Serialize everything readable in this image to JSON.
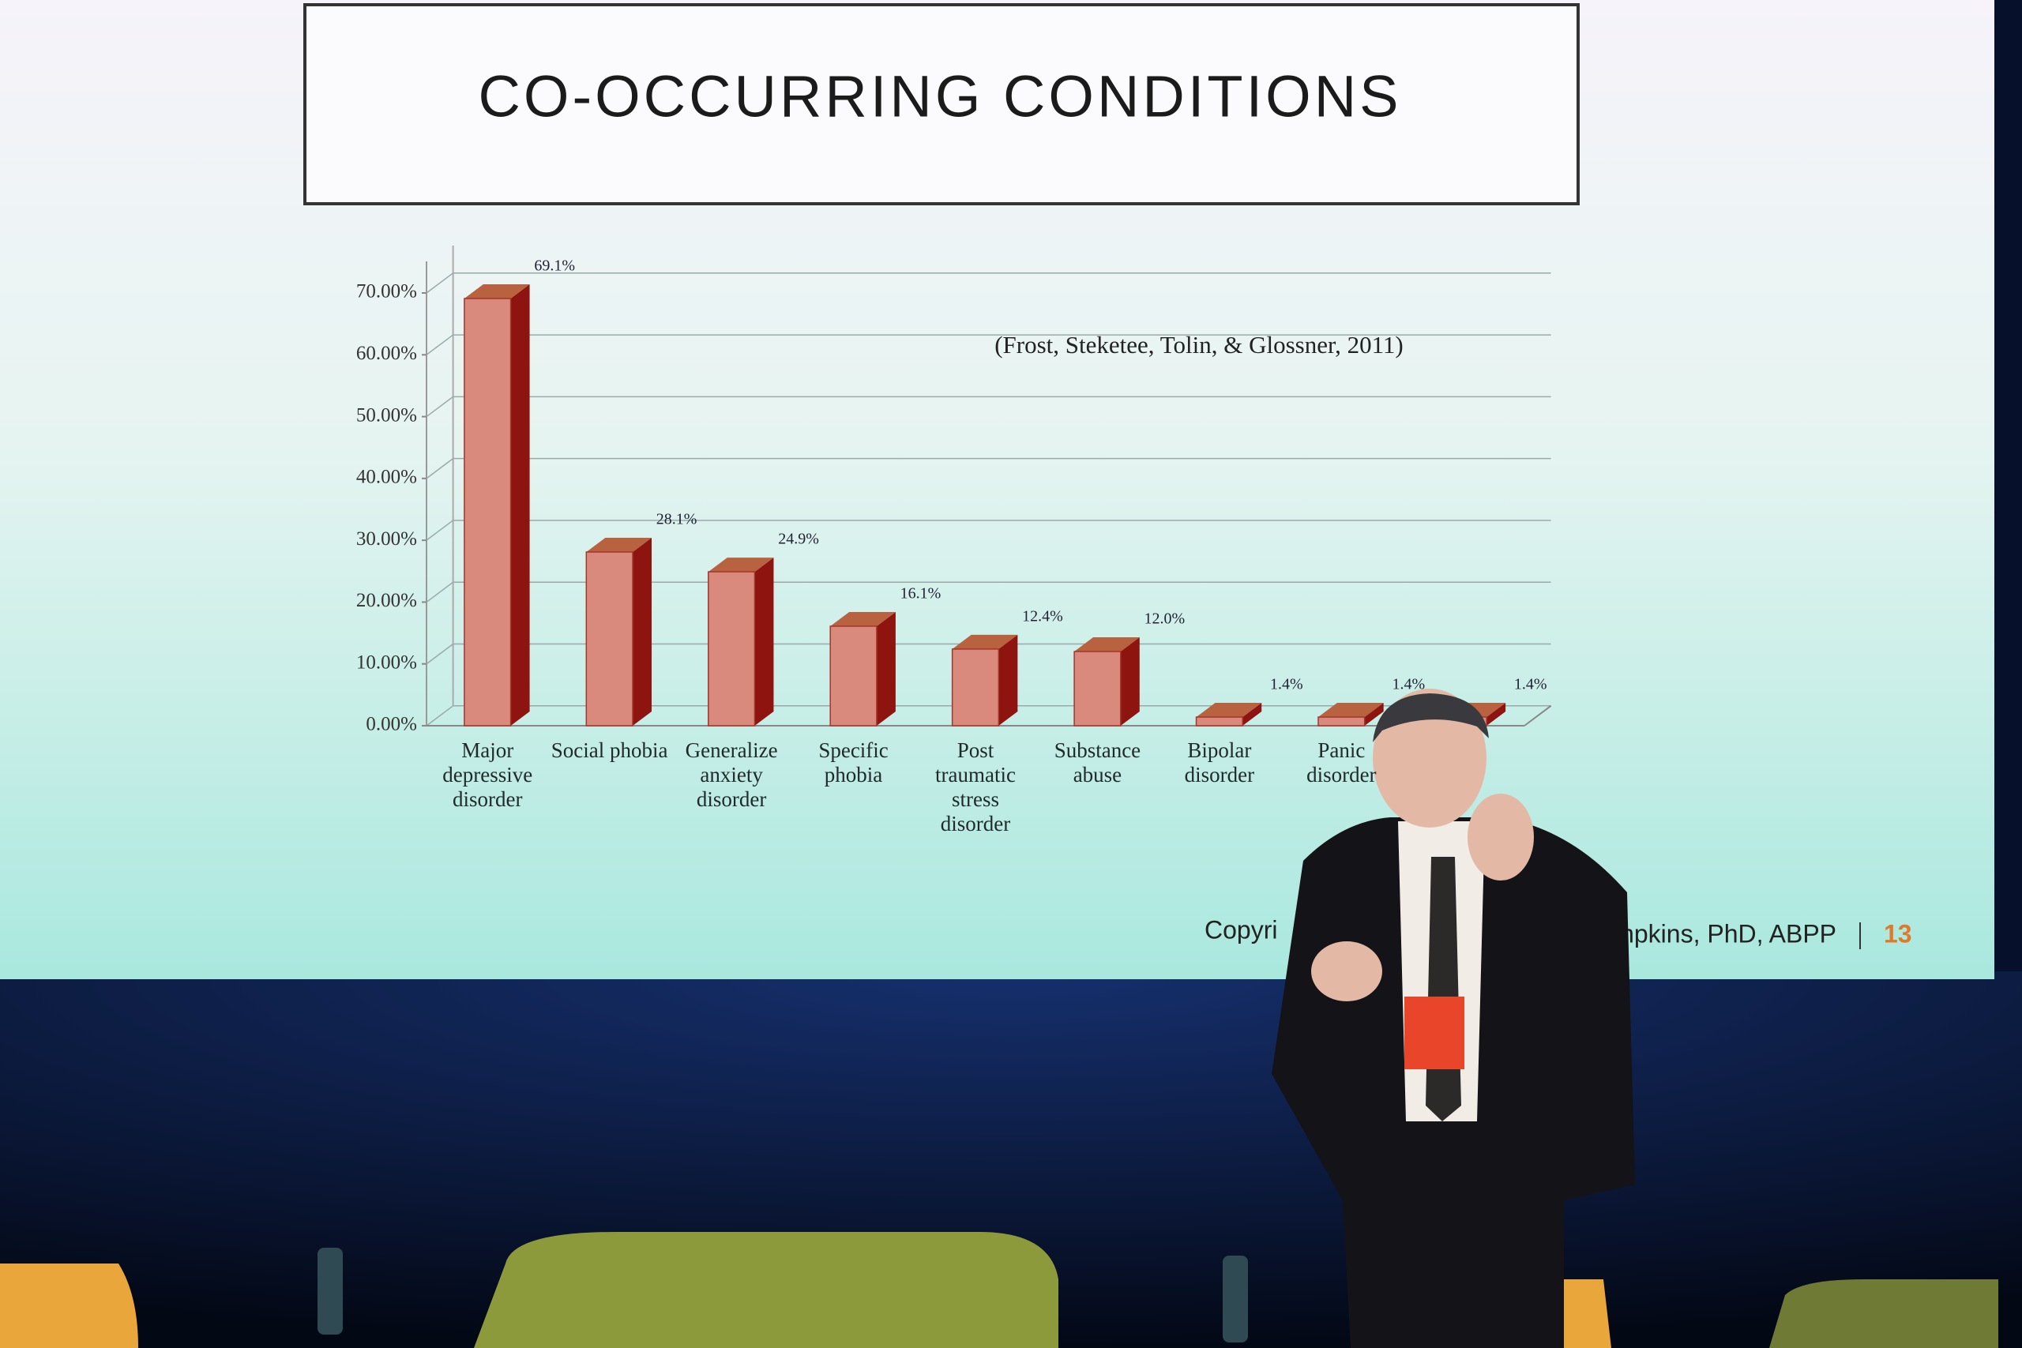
{
  "chart_data": {
    "type": "bar",
    "title": "CO-OCCURRING CONDITIONS",
    "annotation": "(Frost, Steketee, Tolin, & Glossner, 2011)",
    "footer_left": "Copyri",
    "footer_right": "mpkins, PhD, ABPP",
    "page_number": "13",
    "categories": [
      "Major depressive disorder",
      "Social phobia",
      "Generalize anxiety disorder",
      "Specific phobia",
      "Post traumatic stress disorder",
      "Substance abuse",
      "Bipolar disorder",
      "Panic disorder",
      null
    ],
    "values": [
      69.1,
      28.1,
      24.9,
      16.1,
      12.4,
      12.0,
      1.4,
      1.4,
      1.4
    ],
    "value_labels": [
      "69.1%",
      "28.1%",
      "24.9%",
      "16.1%",
      "12.4%",
      "12.0%",
      "1.4%",
      "1.4%",
      "1.4%"
    ],
    "color": "#d98a7c",
    "ylim": [
      0,
      70
    ],
    "yticks": [
      {
        "value": 0,
        "label": "0.00%"
      },
      {
        "value": 10,
        "label": "10.00%"
      },
      {
        "value": 20,
        "label": "20.00%"
      },
      {
        "value": 30,
        "label": "30.00%"
      },
      {
        "value": 40,
        "label": "40.00%"
      },
      {
        "value": 50,
        "label": "50.00%"
      },
      {
        "value": 60,
        "label": "60.00%"
      },
      {
        "value": 70,
        "label": "70.00%"
      }
    ],
    "grid": true
  }
}
